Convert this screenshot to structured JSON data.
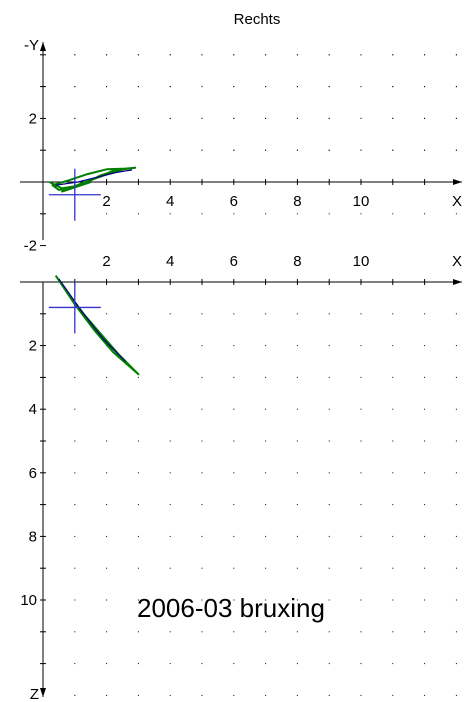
{
  "title": "Rechts",
  "caption": "2006-03 bruxing",
  "colors": {
    "axis": "#000000",
    "grid": "#000000",
    "trace_primary": "#008000",
    "trace_secondary": "#000080",
    "crosshair": "#3333cc"
  },
  "chart_data": [
    {
      "type": "line",
      "view": "frontal",
      "xlabel": "X",
      "ylabel": "-Y",
      "xlim": [
        -1,
        13
      ],
      "ylim": [
        -2,
        4
      ],
      "x_ticks": [
        2,
        4,
        6,
        8,
        10
      ],
      "x_tick_labels": [
        "2",
        "4",
        "6",
        "8",
        "10"
      ],
      "y_ticks": [
        2,
        -2
      ],
      "y_tick_labels": [
        "2",
        "-2"
      ],
      "grid": true,
      "grid_step": 1,
      "crosshair": [
        1,
        -0.4
      ],
      "series": [
        {
          "color": "#008000",
          "points": [
            [
              0.2,
              0.0
            ],
            [
              0.6,
              -0.2
            ],
            [
              1.2,
              -0.1
            ],
            [
              1.8,
              0.2
            ],
            [
              2.4,
              0.4
            ],
            [
              2.9,
              0.45
            ],
            [
              2.2,
              0.35
            ],
            [
              1.6,
              0.1
            ],
            [
              1.0,
              -0.15
            ],
            [
              0.5,
              -0.25
            ],
            [
              0.3,
              -0.1
            ],
            [
              0.8,
              0.05
            ],
            [
              1.4,
              0.25
            ],
            [
              2.0,
              0.4
            ],
            [
              2.6,
              0.42
            ],
            [
              1.9,
              0.2
            ],
            [
              1.2,
              -0.05
            ],
            [
              0.6,
              -0.3
            ],
            [
              0.9,
              -0.2
            ],
            [
              1.5,
              0.0
            ]
          ]
        },
        {
          "color": "#000080",
          "points": [
            [
              0.4,
              -0.1
            ],
            [
              1.1,
              0.0
            ],
            [
              1.7,
              0.15
            ],
            [
              2.3,
              0.3
            ],
            [
              2.8,
              0.38
            ]
          ]
        }
      ]
    },
    {
      "type": "line",
      "view": "sagittal",
      "xlabel": "X",
      "ylabel": "Z",
      "xlim": [
        -1,
        13
      ],
      "ylim": [
        -1,
        12
      ],
      "x_ticks": [
        2,
        4,
        6,
        8,
        10
      ],
      "x_tick_labels": [
        "2",
        "4",
        "6",
        "8",
        "10"
      ],
      "y_ticks": [
        2,
        4,
        6,
        8,
        10
      ],
      "y_tick_labels": [
        "2",
        "4",
        "6",
        "8",
        "10"
      ],
      "grid": true,
      "grid_step": 1,
      "crosshair": [
        1,
        0.8
      ],
      "series": [
        {
          "color": "#008000",
          "points": [
            [
              0.4,
              -0.2
            ],
            [
              1.0,
              0.7
            ],
            [
              1.6,
              1.5
            ],
            [
              2.2,
              2.2
            ],
            [
              3.0,
              2.9
            ],
            [
              2.4,
              2.3
            ],
            [
              1.7,
              1.5
            ],
            [
              1.1,
              0.8
            ],
            [
              0.6,
              0.1
            ],
            [
              0.9,
              0.5
            ],
            [
              1.5,
              1.3
            ],
            [
              2.1,
              2.0
            ],
            [
              2.7,
              2.6
            ]
          ]
        },
        {
          "color": "#000080",
          "points": [
            [
              0.5,
              -0.1
            ],
            [
              1.2,
              0.9
            ],
            [
              1.9,
              1.8
            ],
            [
              2.6,
              2.5
            ]
          ]
        }
      ]
    }
  ]
}
